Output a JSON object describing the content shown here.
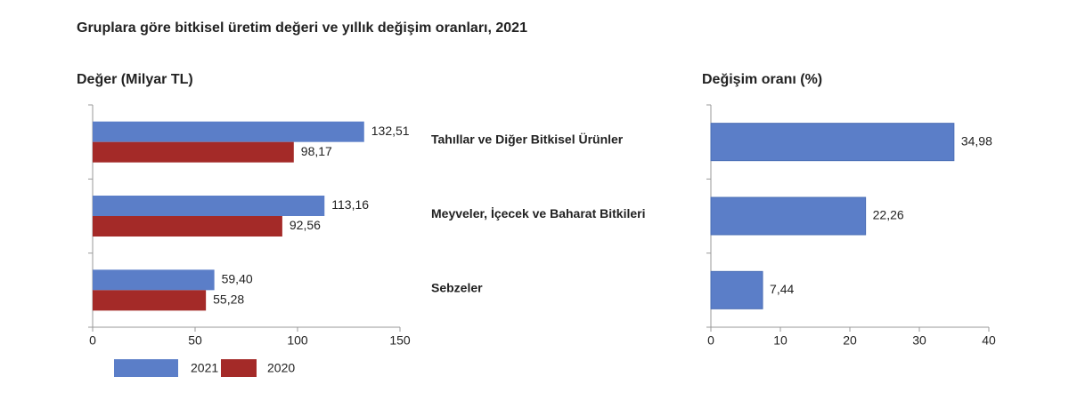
{
  "title": "Gruplara göre bitkisel üretim değeri ve yıllık değişim oranları, 2021",
  "chart_data": [
    {
      "type": "bar",
      "orientation": "horizontal",
      "title": "Değer (Milyar TL)",
      "categories": [
        "Tahıllar ve Diğer Bitkisel Ürünler",
        "Meyveler, İçecek ve Baharat Bitkileri",
        "Sebzeler"
      ],
      "series": [
        {
          "name": "2021",
          "color": "#5b7ec8",
          "values": [
            132.51,
            113.16,
            59.4
          ],
          "value_labels": [
            "132,51",
            "113,16",
            "59,40"
          ]
        },
        {
          "name": "2020",
          "color": "#a42a28",
          "values": [
            98.17,
            92.56,
            55.28
          ],
          "value_labels": [
            "98,17",
            "92,56",
            "55,28"
          ]
        }
      ],
      "xlim": [
        0,
        150
      ],
      "xticks": [
        0,
        50,
        100,
        150
      ],
      "legend": "bottom-left"
    },
    {
      "type": "bar",
      "orientation": "horizontal",
      "title": "Değişim oranı (%)",
      "series": [
        {
          "color": "#5b7ec8",
          "values": [
            34.98,
            22.26,
            7.44
          ],
          "value_labels": [
            "34,98",
            "22,26",
            "7,44"
          ]
        }
      ],
      "xlim": [
        0,
        40
      ],
      "xticks": [
        0,
        10,
        20,
        30,
        40
      ]
    }
  ]
}
